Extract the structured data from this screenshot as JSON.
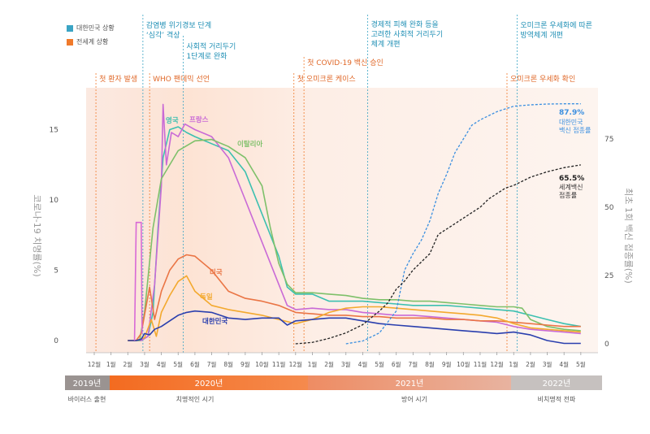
{
  "legend": [
    {
      "label": "대한민국 상황",
      "color": "#3aa4c4"
    },
    {
      "label": "전세계 상황",
      "color": "#f07a2b"
    }
  ],
  "korea_events": [
    {
      "label": "감염병 위기경보 단계 '심각' 격상"
    },
    {
      "label": "사회적 거리두기 1단계로 완화"
    },
    {
      "label": "경제적 피해 완화 등을 고려한 사회적 거리두기 체계 개편"
    },
    {
      "label": "오미크론 우세화에 따른 방역체계 개편"
    }
  ],
  "world_events": [
    {
      "label": "첫 환자 발생"
    },
    {
      "label": "WHO 팬데믹 선언"
    },
    {
      "label": "첫 COVID-19 백신 승인"
    },
    {
      "label": "첫 오미크론 케이스"
    },
    {
      "label": "오미크론 우세화 확인"
    }
  ],
  "timeline": {
    "years": [
      "2019년",
      "2020년",
      "2021년",
      "2022년"
    ],
    "phases": [
      "바이러스 출현",
      "치명적인 시기",
      "방어 시기",
      "비치명적 전파"
    ]
  },
  "annotations": {
    "korea_vax_pct": "87.9%",
    "korea_vax_label": "대한민국 백신 접종률",
    "world_vax_pct": "65.5%",
    "world_vax_label": "세계 백신 접종률"
  },
  "chart_data": {
    "type": "line",
    "ylabel": "코로나-19 치명률(%)",
    "y2label": "최초 1회 백신 접종률(%)",
    "x_ticks": [
      "12월",
      "1월",
      "2월",
      "3월",
      "4월",
      "5월",
      "6월",
      "7월",
      "8월",
      "9월",
      "10월",
      "11월",
      "12월",
      "1월",
      "2월",
      "3월",
      "4월",
      "5월",
      "6월",
      "7월",
      "8월",
      "9월",
      "10월",
      "11월",
      "12월",
      "1월",
      "2월",
      "3월",
      "4월",
      "5월"
    ],
    "ylim": [
      0,
      17
    ],
    "yticks": [
      0,
      5,
      10,
      15
    ],
    "y2lim": [
      0,
      100
    ],
    "y2ticks": [
      0,
      25,
      50,
      75
    ],
    "series": [
      {
        "name": "영국",
        "color": "#3cc0b0",
        "axis": "left",
        "x": [
          2,
          2.4,
          2.8,
          3.2,
          3.5,
          3.8,
          4.1,
          4.5,
          5.0,
          5.5,
          6.0,
          7,
          8,
          9,
          10,
          11,
          11.5,
          12,
          13,
          14,
          15,
          16,
          17,
          18,
          19,
          20,
          21,
          22,
          23,
          24,
          25,
          26,
          27,
          28,
          29
        ],
        "y": [
          0,
          0,
          0,
          0.3,
          2,
          8,
          13,
          15,
          15.2,
          14.8,
          14.5,
          14,
          13.5,
          12,
          9,
          6,
          3.8,
          3.3,
          3.3,
          2.8,
          2.8,
          2.8,
          2.7,
          2.6,
          2.5,
          2.5,
          2.5,
          2.4,
          2.3,
          2.2,
          2.1,
          1.8,
          1.5,
          1.2,
          1.0
        ]
      },
      {
        "name": "프랑스",
        "color": "#c96ad6",
        "axis": "left",
        "x": [
          2,
          2.4,
          2.8,
          3.2,
          3.6,
          4.0,
          4.1,
          4.3,
          4.6,
          5.0,
          5.4,
          6,
          7,
          8,
          9,
          10,
          11,
          11.5,
          12,
          13,
          14,
          15,
          16,
          17,
          18,
          19,
          20,
          21,
          22,
          23,
          24,
          25,
          26,
          27,
          28,
          29
        ],
        "y": [
          0,
          0,
          0,
          0.3,
          4,
          11,
          16.8,
          12.5,
          14.8,
          14.5,
          15.4,
          15,
          14.5,
          13,
          10,
          7,
          4,
          2.5,
          2.2,
          2.3,
          2.2,
          2.2,
          2.0,
          1.9,
          1.8,
          1.8,
          1.7,
          1.6,
          1.5,
          1.4,
          1.3,
          1.0,
          0.8,
          0.7,
          0.6,
          0.5
        ]
      },
      {
        "name": "이탈리아",
        "color": "#7ec06a",
        "axis": "left",
        "x": [
          2,
          2.4,
          2.7,
          3.0,
          3.5,
          4.0,
          5.0,
          6.0,
          7,
          8,
          9,
          10,
          10.5,
          11,
          11.5,
          12,
          13,
          14,
          15,
          16,
          17,
          18,
          19,
          20,
          21,
          22,
          23,
          24,
          25,
          25.5,
          26,
          27,
          28,
          29
        ],
        "y": [
          0,
          0,
          0,
          2,
          8,
          11.5,
          13.5,
          14.2,
          14.3,
          13.8,
          13,
          11,
          8,
          5.5,
          4,
          3.4,
          3.4,
          3.3,
          3.2,
          3.0,
          2.9,
          2.9,
          2.8,
          2.8,
          2.7,
          2.6,
          2.5,
          2.4,
          2.4,
          2.3,
          1.5,
          1.0,
          0.8,
          0.7
        ]
      },
      {
        "name": "미국",
        "color": "#ea7545",
        "axis": "left",
        "x": [
          2,
          2.5,
          2.8,
          3.1,
          3.3,
          3.6,
          4.0,
          4.5,
          5.0,
          5.5,
          6.0,
          7,
          8,
          9,
          10,
          11,
          12,
          13,
          14,
          15,
          16,
          17,
          18,
          19,
          20,
          21,
          22,
          23,
          24,
          25,
          26,
          27,
          28,
          29
        ],
        "y": [
          0,
          0,
          0.5,
          2.5,
          3.8,
          1.5,
          3.5,
          5.0,
          5.8,
          6.1,
          6.0,
          5.0,
          3.5,
          3.0,
          2.8,
          2.5,
          2.0,
          1.9,
          1.8,
          1.8,
          1.7,
          1.7,
          1.6,
          1.6,
          1.6,
          1.5,
          1.5,
          1.4,
          1.4,
          1.3,
          1.2,
          1.1,
          1.0,
          1.0
        ]
      },
      {
        "name": "독일",
        "color": "#f3a92e",
        "axis": "left",
        "x": [
          2,
          2.5,
          3.0,
          3.4,
          3.7,
          4.0,
          4.5,
          5.0,
          5.5,
          6.0,
          6.5,
          7,
          8,
          9,
          10,
          11,
          12,
          13,
          14,
          15,
          16,
          17,
          18,
          19,
          20,
          21,
          22,
          23,
          24,
          25,
          26,
          27,
          28,
          29
        ],
        "y": [
          0,
          0,
          0.2,
          1.5,
          0.3,
          2.0,
          3.2,
          4.2,
          4.6,
          3.5,
          3.0,
          2.5,
          2.2,
          2.0,
          1.8,
          1.5,
          1.2,
          1.5,
          2.0,
          2.3,
          2.4,
          2.4,
          2.3,
          2.2,
          2.1,
          2.0,
          1.9,
          1.8,
          1.6,
          1.2,
          0.9,
          0.8,
          0.7,
          0.6
        ]
      },
      {
        "name": "대한민국",
        "color": "#2a3fae",
        "axis": "left",
        "x": [
          2,
          2.5,
          2.8,
          3.0,
          3.3,
          3.6,
          4.0,
          4.5,
          5.0,
          5.5,
          6.0,
          7,
          8,
          9,
          10,
          11,
          11.5,
          12,
          13,
          14,
          15,
          16,
          17,
          18,
          19,
          20,
          21,
          22,
          23,
          24,
          25,
          26,
          27,
          28,
          29
        ],
        "y": [
          0,
          0,
          0.1,
          0.5,
          0.4,
          0.8,
          1.0,
          1.4,
          1.8,
          2.0,
          2.1,
          2.0,
          1.6,
          1.5,
          1.6,
          1.6,
          1.1,
          1.4,
          1.5,
          1.6,
          1.6,
          1.4,
          1.2,
          1.1,
          1.0,
          0.9,
          0.8,
          0.7,
          0.6,
          0.5,
          0.6,
          0.4,
          0.0,
          -0.2,
          -0.2
        ]
      },
      {
        "name": "대한민국 백신 접종률",
        "color": "#3a8fe0",
        "axis": "right",
        "dashed": true,
        "x": [
          15,
          16,
          17,
          17.5,
          18,
          18.5,
          19,
          19.5,
          20,
          20.5,
          21,
          21.5,
          22,
          22.5,
          23,
          24,
          24.5,
          25,
          26,
          27,
          28,
          29
        ],
        "y": [
          0,
          1,
          4,
          8,
          12,
          27,
          33,
          38,
          45,
          55,
          62,
          70,
          75,
          80,
          82,
          85,
          86,
          87,
          87.5,
          87.8,
          87.9,
          87.9
        ]
      },
      {
        "name": "세계 백신 접종률",
        "color": "#222222",
        "axis": "right",
        "dashed": true,
        "x": [
          12,
          13,
          14,
          15,
          16,
          17,
          17.5,
          18,
          18.5,
          19,
          19.5,
          20,
          20.5,
          21,
          21.5,
          22,
          22.5,
          23,
          23.5,
          24,
          24.5,
          25,
          26,
          27,
          28,
          29
        ],
        "y": [
          0,
          0.5,
          2,
          4,
          7,
          12,
          15,
          20,
          23,
          27,
          30,
          33,
          40,
          42,
          44,
          46,
          48,
          50,
          53,
          55,
          57,
          58,
          61,
          63,
          64.5,
          65.5
        ]
      }
    ]
  }
}
